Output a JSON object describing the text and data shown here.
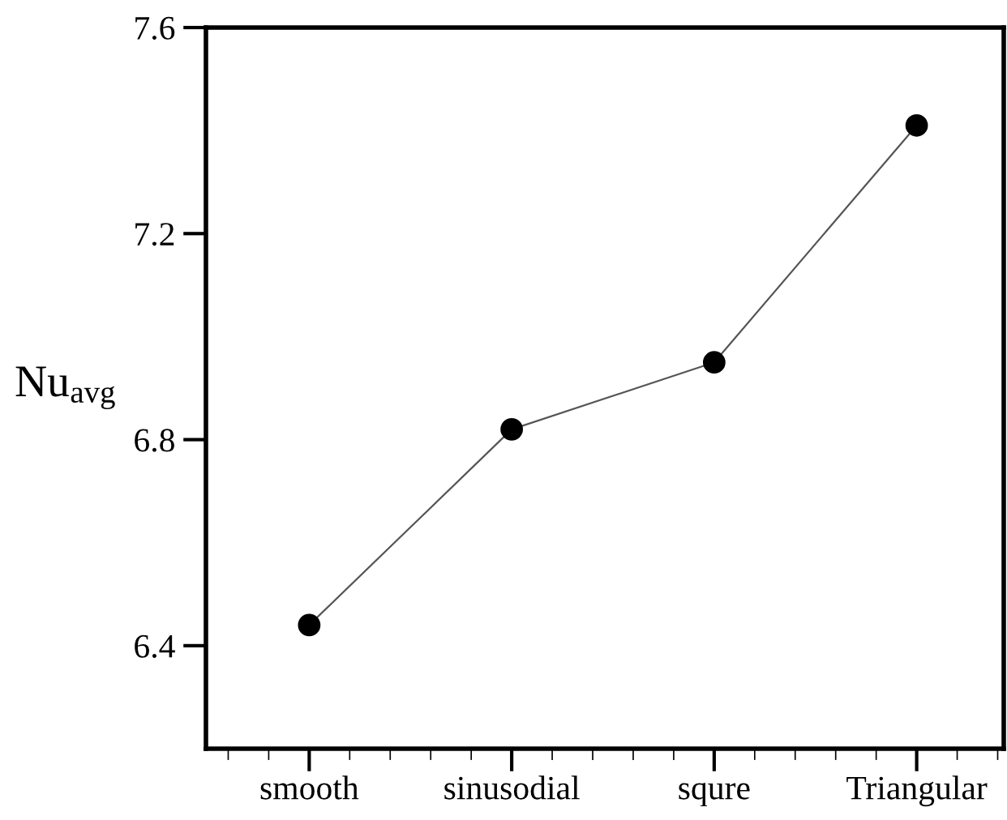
{
  "chart_data": {
    "type": "line",
    "ylabel": "Nu$_{avg}$",
    "categories": [
      "smooth",
      "sinusodial",
      "squre",
      "Triangular"
    ],
    "series": [
      {
        "color": "#000000",
        "values": [
          6.44,
          6.82,
          6.95,
          7.41
        ]
      }
    ],
    "ylim": [
      6.2,
      7.6
    ],
    "yticks": [
      {
        "value": 6.4,
        "label": "6.4"
      },
      {
        "value": 6.8,
        "label": "6.8"
      },
      {
        "value": 7.2,
        "label": "7.2"
      },
      {
        "value": 7.6,
        "label": "7.6"
      }
    ],
    "marker": "circle",
    "line_style": "solid",
    "grid": false,
    "legend": false
  }
}
